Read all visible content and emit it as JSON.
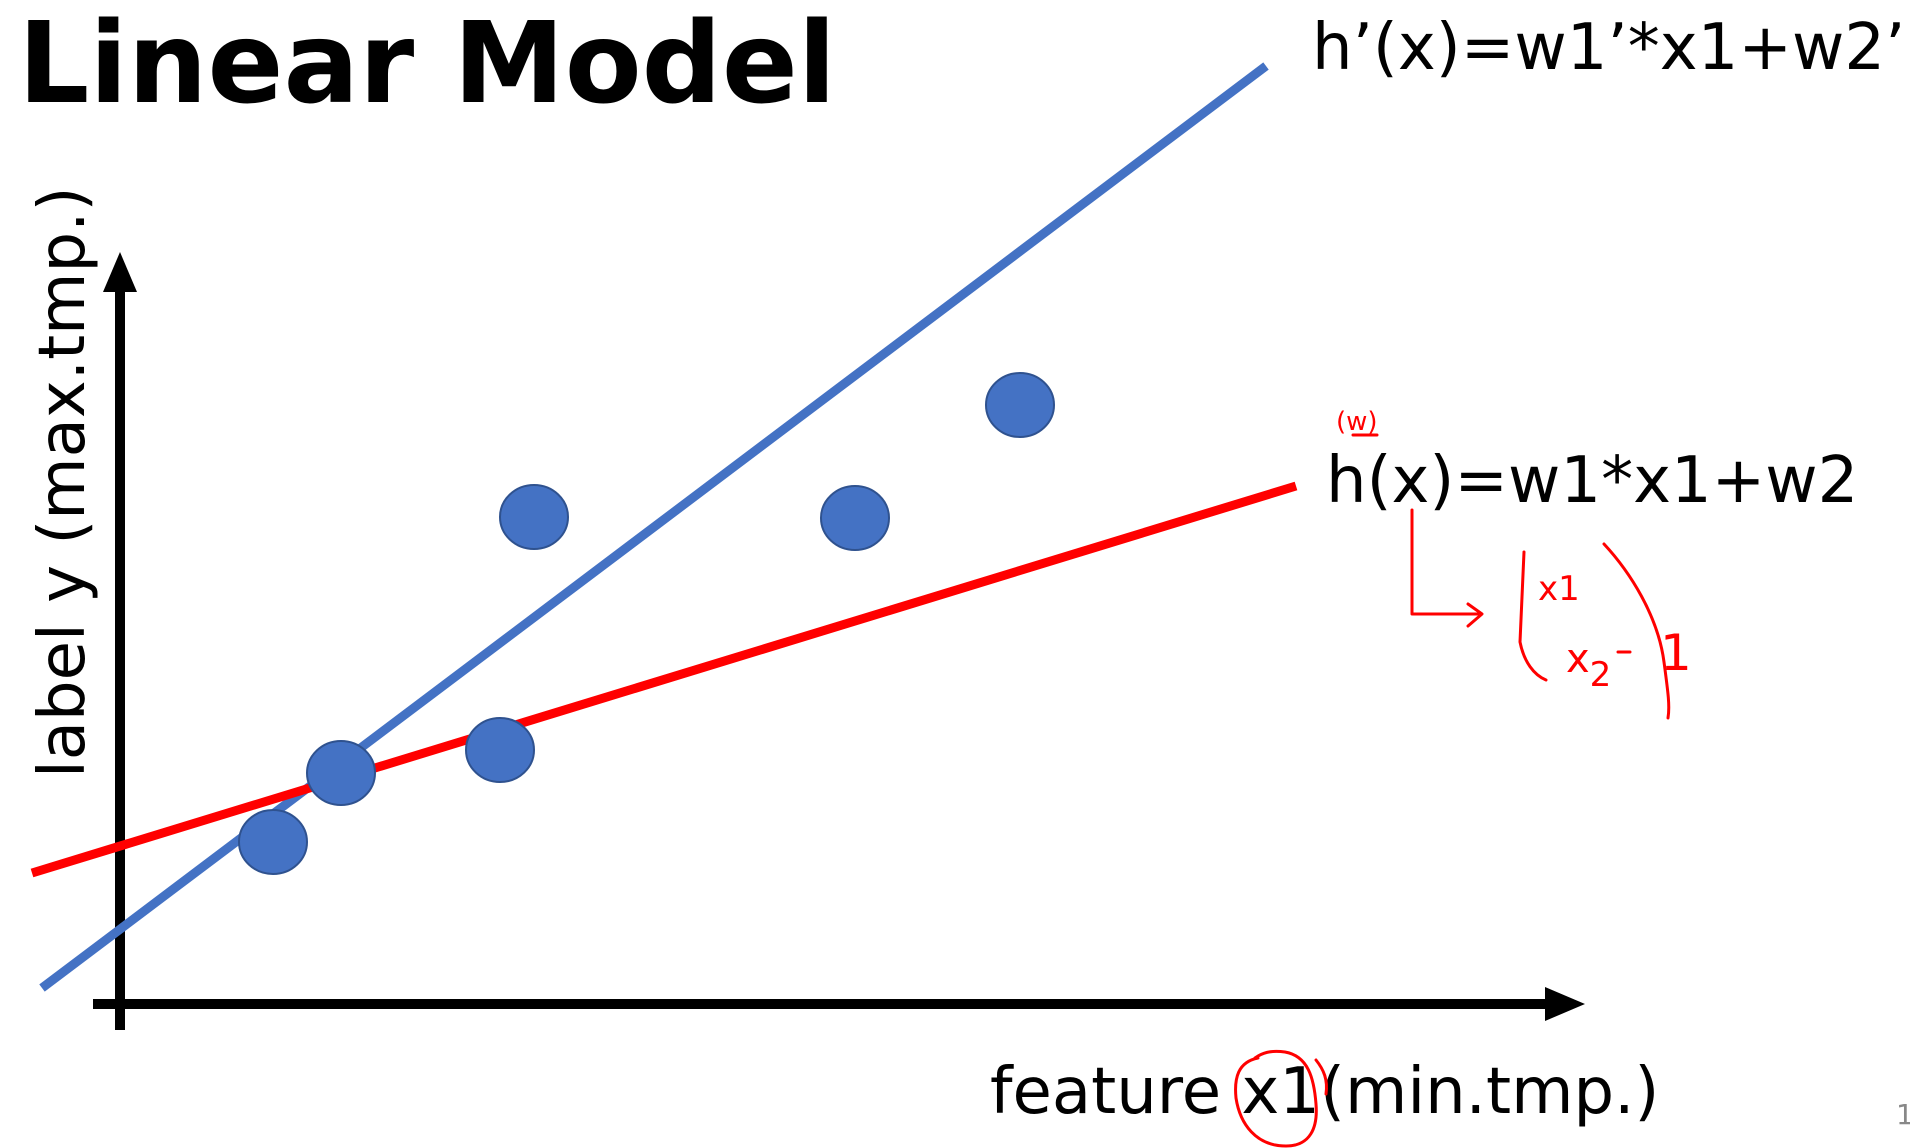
{
  "title": "Linear Model",
  "equations": {
    "blue": "h’(x)=w1’*x1+w2’",
    "red": "h(x)=w1*x1+w2"
  },
  "axes": {
    "y_label": "label y (max.tmp.)",
    "x_label_prefix": "feature ",
    "x_label_variable": "x1",
    "x_label_suffix": "(min.tmp.)"
  },
  "annotations": {
    "w_note": "(w)",
    "vector_x1": "x1",
    "vector_x2": "x",
    "vector_x2_sub": "2",
    "vector_one": "1"
  },
  "page_number": "1",
  "colors": {
    "points": "#4472c4",
    "blue_line": "#4472c4",
    "red_line": "#ff0000",
    "annotation": "#ff0000"
  }
}
